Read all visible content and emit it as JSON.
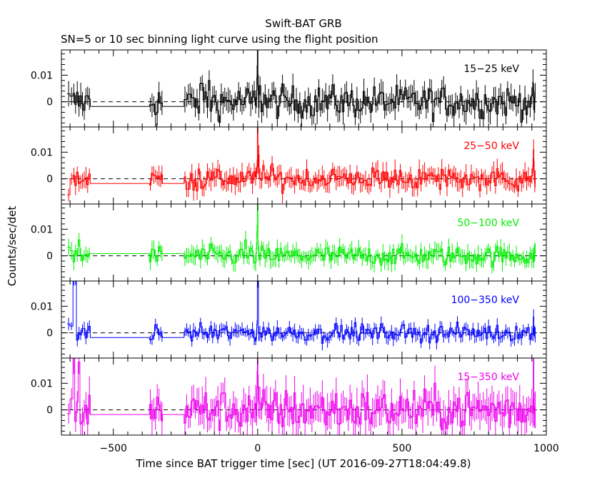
{
  "header": {
    "title": "Swift-BAT GRB",
    "subtitle": "SN=5 or 10 sec binning light curve using the flight position"
  },
  "chart_data": {
    "type": "line",
    "style": "step-with-errorbars",
    "xlabel": "Time since BAT trigger time [sec] (UT 2016-09-27T18:04:49.8)",
    "ylabel": "Counts/sec/det",
    "xlim": [
      -680,
      1000
    ],
    "x_ticks": [
      -500,
      0,
      500,
      1000
    ],
    "x_tick_labels": [
      "−500",
      "0",
      "500",
      "1000"
    ],
    "panel_ylim": [
      -0.0095,
      0.0195
    ],
    "y_ticks": [
      0,
      0.01
    ],
    "y_tick_labels": [
      "0",
      "0.01"
    ],
    "zero_line": "dashed",
    "panels": [
      {
        "label": "15−25 keV",
        "color": "#000000",
        "noise": 0.0042,
        "err": 0.0042,
        "features": [
          {
            "x": 0,
            "y": 0.0195
          },
          {
            "x": -2,
            "y": 0.009
          },
          {
            "x": 5,
            "y": 0.006
          },
          {
            "x": -190,
            "y": 0.007
          },
          {
            "x": -170,
            "y": 0.008
          }
        ]
      },
      {
        "label": "25−50 keV",
        "color": "#ff0000",
        "noise": 0.003,
        "err": 0.0034,
        "features": [
          {
            "x": 0,
            "y": 0.0195
          },
          {
            "x": 3,
            "y": 0.009
          },
          {
            "x": 20,
            "y": 0.005
          },
          {
            "x": 955,
            "y": 0.011
          }
        ]
      },
      {
        "label": "50−100 keV",
        "color": "#00ee00",
        "noise": 0.0026,
        "err": 0.003,
        "features": [
          {
            "x": 0,
            "y": 0.0195
          },
          {
            "x": -3,
            "y": 0.009
          },
          {
            "x": -40,
            "y": 0.006
          },
          {
            "x": -620,
            "y": 0.006
          }
        ]
      },
      {
        "label": "100−350 keV",
        "color": "#0000ff",
        "noise": 0.0022,
        "err": 0.0024,
        "features": [
          {
            "x": 0,
            "y": 0.0195
          },
          {
            "x": 2,
            "y": 0.0195
          },
          {
            "x": -640,
            "y": 0.0195
          },
          {
            "x": -630,
            "y": 0.0195
          },
          {
            "x": 955,
            "y": 0.006
          }
        ]
      },
      {
        "label": "15−350 keV",
        "color": "#ee00ee",
        "noise": 0.0055,
        "err": 0.006,
        "features": [
          {
            "x": 0,
            "y": 0.0195
          },
          {
            "x": -640,
            "y": 0.0195
          },
          {
            "x": -620,
            "y": 0.018
          },
          {
            "x": 955,
            "y": 0.0195
          }
        ]
      }
    ]
  }
}
